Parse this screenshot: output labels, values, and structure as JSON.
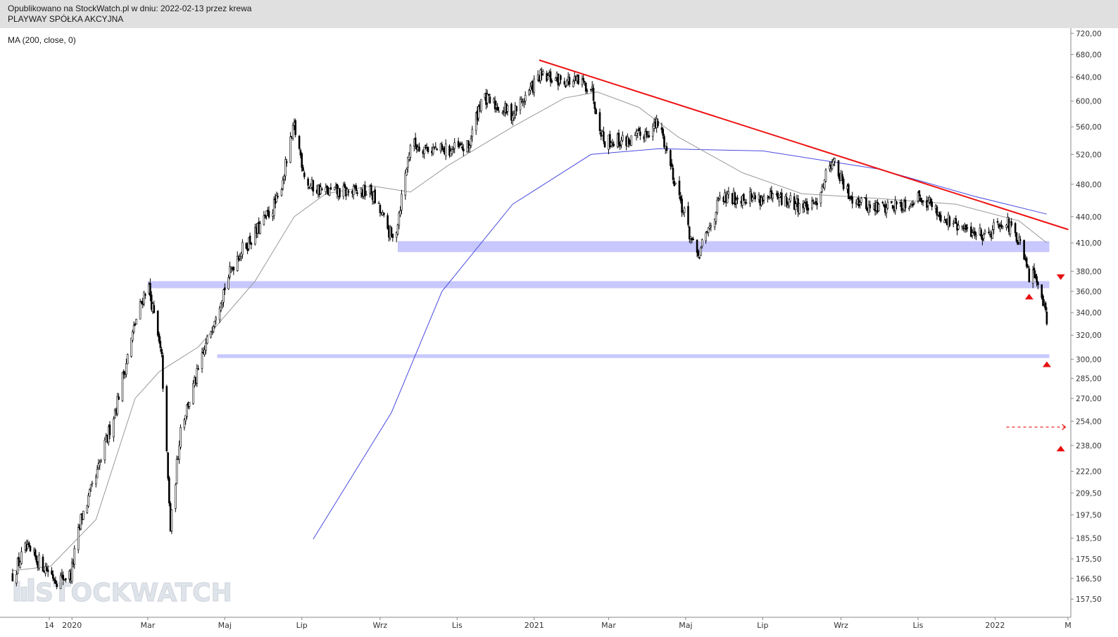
{
  "header": {
    "published": "Opublikowano na StockWatch.pl w dniu: 2022-02-13 przez krewa",
    "company": "PLAYWAY SPÓŁKA AKCYJNA"
  },
  "indicator_label": "MA (200, close, 0)",
  "watermark": "STOCKWATCH",
  "colors": {
    "candle": "#000000",
    "ma_fast": "#999999",
    "ma_slow": "#4a4ae0",
    "zones": "#c8c8ff",
    "trendline": "#ee1111",
    "arrows": "#e81010"
  },
  "chart_data": {
    "type": "candlestick",
    "scale": "log",
    "ylim": [
      150,
      730
    ],
    "y_ticks": [
      "720,00",
      "680,00",
      "640,00",
      "600,00",
      "560,00",
      "520,00",
      "480,00",
      "440,00",
      "410,00",
      "380,00",
      "360,00",
      "340,00",
      "320,00",
      "300,00",
      "285,00",
      "270,00",
      "254,00",
      "238,00",
      "222,00",
      "209,50",
      "197,50",
      "185,50",
      "175,50",
      "166,50",
      "157,50"
    ],
    "x_ticks": [
      "14",
      "2020",
      "Mar",
      "Maj",
      "Lip",
      "Wrz",
      "Lis",
      "2021",
      "Mar",
      "Maj",
      "Lip",
      "Wrz",
      "Lis",
      "2022",
      "M"
    ],
    "price_path": [
      [
        "2019-11-15",
        168
      ],
      [
        "2019-11-25",
        180
      ],
      [
        "2019-12-10",
        172
      ],
      [
        "2019-12-20",
        166
      ],
      [
        "2019-12-31",
        168
      ],
      [
        "2020-01-08",
        195
      ],
      [
        "2020-01-20",
        218
      ],
      [
        "2020-02-05",
        265
      ],
      [
        "2020-02-20",
        330
      ],
      [
        "2020-03-01",
        370
      ],
      [
        "2020-03-12",
        300
      ],
      [
        "2020-03-19",
        190
      ],
      [
        "2020-03-27",
        250
      ],
      [
        "2020-04-10",
        290
      ],
      [
        "2020-04-25",
        345
      ],
      [
        "2020-05-10",
        395
      ],
      [
        "2020-05-25",
        420
      ],
      [
        "2020-06-12",
        460
      ],
      [
        "2020-06-25",
        560
      ],
      [
        "2020-07-05",
        480
      ],
      [
        "2020-07-20",
        470
      ],
      [
        "2020-08-10",
        470
      ],
      [
        "2020-08-25",
        470
      ],
      [
        "2020-09-12",
        410
      ],
      [
        "2020-09-25",
        535
      ],
      [
        "2020-10-20",
        525
      ],
      [
        "2020-11-10",
        530
      ],
      [
        "2020-11-20",
        605
      ],
      [
        "2020-12-15",
        580
      ],
      [
        "2021-01-05",
        640
      ],
      [
        "2021-01-25",
        635
      ],
      [
        "2021-02-15",
        625
      ],
      [
        "2021-02-25",
        540
      ],
      [
        "2021-03-20",
        540
      ],
      [
        "2021-04-10",
        565
      ],
      [
        "2021-04-25",
        470
      ],
      [
        "2021-05-10",
        392
      ],
      [
        "2021-05-28",
        460
      ],
      [
        "2021-06-15",
        465
      ],
      [
        "2021-07-15",
        460
      ],
      [
        "2021-08-10",
        450
      ],
      [
        "2021-08-25",
        515
      ],
      [
        "2021-09-05",
        470
      ],
      [
        "2021-09-25",
        450
      ],
      [
        "2021-10-20",
        455
      ],
      [
        "2021-11-05",
        465
      ],
      [
        "2021-11-20",
        440
      ],
      [
        "2021-12-05",
        425
      ],
      [
        "2021-12-25",
        420
      ],
      [
        "2022-01-08",
        438
      ],
      [
        "2022-01-20",
        410
      ],
      [
        "2022-01-28",
        375
      ],
      [
        "2022-02-05",
        372
      ],
      [
        "2022-02-11",
        335
      ]
    ],
    "ma200": [
      [
        "2020-07-10",
        185
      ],
      [
        "2020-09-10",
        260
      ],
      [
        "2020-10-20",
        360
      ],
      [
        "2020-12-15",
        455
      ],
      [
        "2021-02-15",
        520
      ],
      [
        "2021-04-10",
        528
      ],
      [
        "2021-07-01",
        525
      ],
      [
        "2021-10-01",
        500
      ],
      [
        "2021-12-15",
        465
      ],
      [
        "2022-02-11",
        443
      ]
    ],
    "ma_short": [
      [
        "2019-11-15",
        170
      ],
      [
        "2019-12-15",
        172
      ],
      [
        "2020-01-20",
        195
      ],
      [
        "2020-02-20",
        270
      ],
      [
        "2020-03-10",
        290
      ],
      [
        "2020-04-10",
        310
      ],
      [
        "2020-05-25",
        370
      ],
      [
        "2020-06-25",
        440
      ],
      [
        "2020-07-20",
        468
      ],
      [
        "2020-08-25",
        478
      ],
      [
        "2020-09-25",
        470
      ],
      [
        "2020-10-25",
        505
      ],
      [
        "2020-12-15",
        560
      ],
      [
        "2021-01-25",
        605
      ],
      [
        "2021-02-20",
        615
      ],
      [
        "2021-03-25",
        590
      ],
      [
        "2021-04-25",
        545
      ],
      [
        "2021-06-15",
        495
      ],
      [
        "2021-08-01",
        468
      ],
      [
        "2021-10-01",
        462
      ],
      [
        "2021-12-01",
        455
      ],
      [
        "2022-01-20",
        435
      ],
      [
        "2022-02-11",
        410
      ]
    ],
    "support_zones": [
      {
        "from": "2020-09-15",
        "to": "2022-02-13",
        "low": 400,
        "high": 412
      },
      {
        "from": "2020-03-01",
        "to": "2022-02-13",
        "low": 363,
        "high": 370
      },
      {
        "from": "2020-04-25",
        "to": "2022-02-13",
        "low": 301,
        "high": 304
      }
    ],
    "trendline": {
      "from": [
        "2021-01-05",
        670
      ],
      "to": [
        "2022-02-28",
        425
      ]
    },
    "target_level": {
      "from": "2022-01-10",
      "to": "2022-02-28",
      "value": 250
    },
    "markers": [
      {
        "date": "2022-01-28",
        "value": 355,
        "direction": "up"
      },
      {
        "date": "2022-02-22",
        "value": 374,
        "direction": "down"
      },
      {
        "date": "2022-02-11",
        "value": 296,
        "direction": "up"
      },
      {
        "date": "2022-02-22",
        "value": 236,
        "direction": "up"
      }
    ]
  }
}
